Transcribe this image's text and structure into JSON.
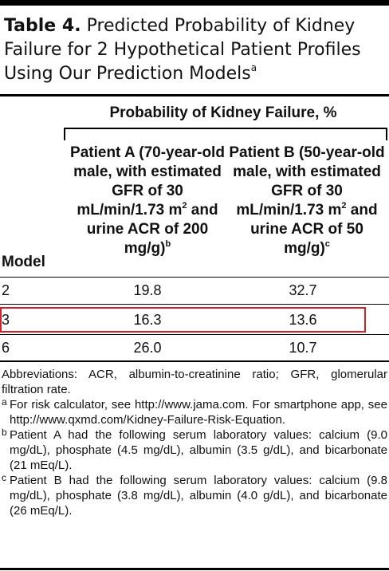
{
  "table": {
    "title_label": "Table 4.",
    "title_text": "Predicted Probability of Kidney Failure for 2 Hypothetical Patient Profiles Using Our Prediction Models",
    "title_footnote": "a",
    "group_header": "Probability of Kidney Failure, %",
    "model_header": "Model",
    "patient_a_header": "Patient A (70-year-old male, with estimated GFR of 30 mL/min/1.73 m",
    "patient_a_header_sup": "2",
    "patient_a_header_rest": " and urine ACR of 200 mg/g)",
    "patient_a_header_note": "b",
    "patient_b_header": "Patient B (50-year-old male, with estimated GFR of 30 mL/min/1.73 m",
    "patient_b_header_sup": "2",
    "patient_b_header_rest": " and urine ACR of 50 mg/g)",
    "patient_b_header_note": "c",
    "rows": [
      {
        "model": "2",
        "patient_a": "19.8",
        "patient_b": "32.7"
      },
      {
        "model": "3",
        "patient_a": "16.3",
        "patient_b": "13.6"
      },
      {
        "model": "6",
        "patient_a": "26.0",
        "patient_b": "10.7"
      }
    ],
    "highlight_color": "#d21f2a"
  },
  "footnotes": {
    "abbreviations": "Abbreviations: ACR, albumin-to-creatinine ratio; GFR, glomerular filtration rate.",
    "a_mark": "a",
    "a_text": "For risk calculator, see http://www.jama.com. For smartphone app, see http://www.qxmd.com/Kidney-Failure-Risk-Equation.",
    "b_mark": "b",
    "b_text": "Patient A had the following serum laboratory values: calcium (9.0 mg/dL), phosphate (4.5 mg/dL), albumin (3.5 g/dL), and bicarbonate (21 mEq/L).",
    "c_mark": "c",
    "c_text": "Patient B had the following serum laboratory values: calcium (9.8 mg/dL), phosphate (3.8 mg/dL), albumin (4.0 g/dL), and bicarbonate (26 mEq/L)."
  }
}
